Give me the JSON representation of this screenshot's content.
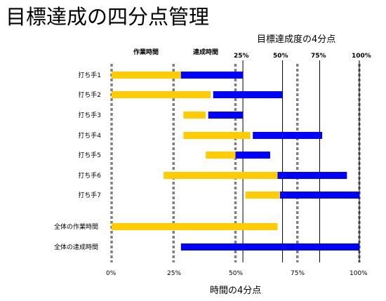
{
  "title": "目標達成の四分点管理",
  "top_axis": {
    "title": "目標達成度の4分点",
    "ticks": [
      "25%",
      "50%",
      "75%",
      "100%"
    ]
  },
  "headers": {
    "work": "作業時間",
    "achieve": "達成時間"
  },
  "bottom_axis": {
    "title": "時間の4分点",
    "ticks": [
      "0%",
      "25%",
      "50%",
      "75%",
      "100%"
    ]
  },
  "colors": {
    "work": "#ffcc00",
    "achieve": "#0000ff",
    "time_quartile": "#808080",
    "goal_quartile": "#000000"
  },
  "chart_data": {
    "type": "bar",
    "x_scale": [
      0,
      100
    ],
    "series": [
      {
        "values": [
          [
            0,
            28
          ],
          [
            0,
            40
          ],
          [
            29,
            38
          ],
          [
            29,
            56
          ],
          [
            38,
            50
          ],
          [
            21,
            67
          ],
          [
            54,
            68
          ],
          [
            0,
            67
          ],
          [
            0,
            0
          ]
        ]
      },
      {
        "values": [
          [
            28,
            53
          ],
          [
            41,
            69
          ],
          [
            39,
            53
          ],
          [
            57,
            85
          ],
          [
            50,
            64
          ],
          [
            67,
            95
          ],
          [
            68,
            100
          ],
          [
            0,
            0
          ],
          [
            28,
            100
          ]
        ]
      }
    ],
    "categories": [
      "打ち手1",
      "打ち手2",
      "打ち手3",
      "打ち手4",
      "打ち手5",
      "打ち手6",
      "打ち手7",
      "全体の作業時間",
      "全体の達成時間"
    ],
    "time_quartiles": [
      0,
      25,
      50,
      75,
      100
    ],
    "goal_quartiles": [
      53,
      69,
      84,
      100
    ]
  }
}
